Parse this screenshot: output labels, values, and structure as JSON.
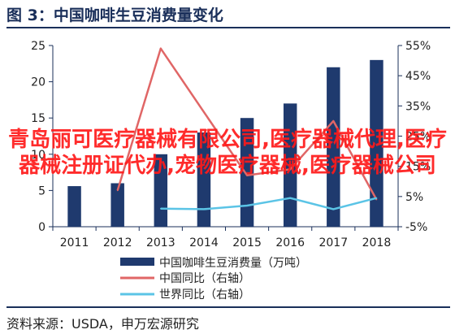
{
  "title": "图 3：中国咖啡生豆消费量变化",
  "source": "资料来源：USDA，申万宏源研究",
  "watermark": "青岛丽可医疗器械有限公司,医疗器械代理,医疗器械注册证代办,宠物医疗器械,医疗器械公司",
  "colors": {
    "bar": "#1f3a6e",
    "china_yoy": "#e06666",
    "world_yoy": "#5bc4e6",
    "axis": "#1a2f5a"
  },
  "chart_data": {
    "type": "bar",
    "categories": [
      "2011",
      "2012",
      "2013",
      "2014",
      "2015",
      "2016",
      "2017",
      "2018"
    ],
    "series": [
      {
        "name": "中国咖啡生豆消费量（万吨）",
        "type": "bar",
        "axis": "left",
        "values": [
          5.6,
          6.0,
          10.0,
          13.0,
          15.0,
          17.0,
          22.0,
          23.0
        ]
      },
      {
        "name": "中国同比（右轴）",
        "type": "line",
        "axis": "right",
        "values": [
          null,
          7.0,
          54.0,
          33.0,
          12.0,
          14.0,
          30.0,
          4.0
        ]
      },
      {
        "name": "世界同比（右轴）",
        "type": "line",
        "axis": "right",
        "values": [
          null,
          null,
          1.0,
          0.8,
          2.0,
          4.5,
          0.8,
          4.5
        ]
      }
    ],
    "y_left": {
      "min": 0,
      "max": 25,
      "ticks": [
        0,
        5,
        10,
        15,
        20,
        25
      ]
    },
    "y_right": {
      "min": -5,
      "max": 55,
      "ticks": [
        "-5%",
        "5%",
        "15%",
        "25%",
        "35%",
        "45%",
        "55%"
      ]
    },
    "legend": [
      "中国咖啡生豆消费量（万吨）",
      "中国同比（右轴）",
      "世界同比（右轴）"
    ],
    "legend_placement": "bottom"
  }
}
